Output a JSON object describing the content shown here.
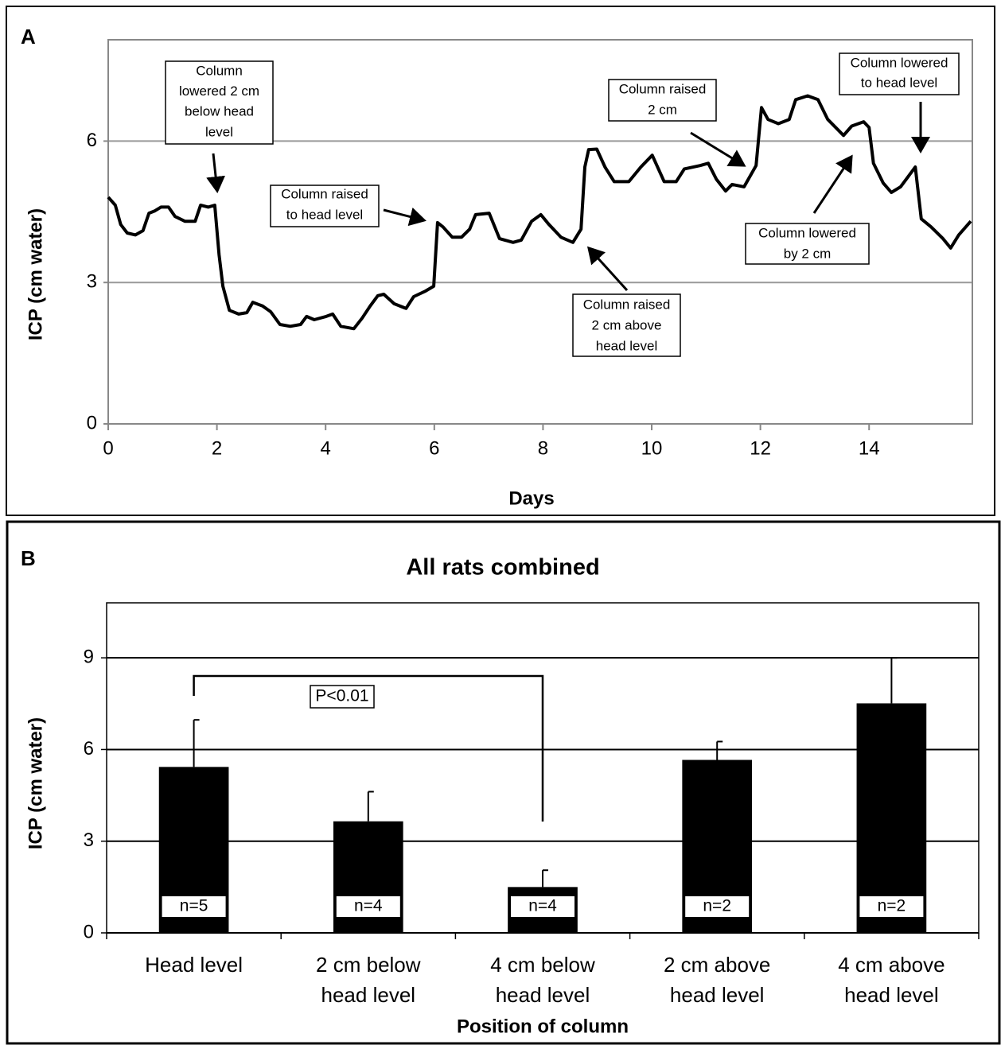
{
  "chart_data": [
    {
      "type": "line",
      "panel": "A",
      "ylabel": "ICP (cm water)",
      "xlabel": "Days",
      "color": "#000000",
      "xlim": [
        0,
        15.9
      ],
      "ylim": [
        0,
        8.15
      ],
      "xticks": [
        0,
        2,
        4,
        6,
        8,
        10,
        12,
        14
      ],
      "yticks": [
        0,
        3,
        6
      ],
      "grid": true,
      "x": [
        0,
        0.13,
        0.23,
        0.35,
        0.5,
        0.64,
        0.75,
        0.86,
        0.97,
        1.11,
        1.23,
        1.41,
        1.6,
        1.7,
        1.84,
        1.96,
        2.04,
        2.11,
        2.23,
        2.4,
        2.55,
        2.66,
        2.84,
        2.99,
        3.16,
        3.35,
        3.54,
        3.65,
        3.79,
        4.01,
        4.13,
        4.28,
        4.52,
        4.67,
        4.82,
        4.96,
        5.07,
        5.26,
        5.48,
        5.62,
        5.84,
        5.99,
        6.06,
        6.16,
        6.33,
        6.5,
        6.65,
        6.76,
        7.01,
        7.2,
        7.45,
        7.6,
        7.79,
        7.96,
        8.11,
        8.33,
        8.55,
        8.7,
        8.77,
        8.84,
        8.99,
        9.14,
        9.31,
        9.58,
        9.8,
        10.01,
        10.23,
        10.45,
        10.6,
        10.89,
        11.04,
        11.19,
        11.36,
        11.48,
        11.7,
        11.92,
        12.02,
        12.14,
        12.33,
        12.53,
        12.65,
        12.87,
        13.06,
        13.24,
        13.53,
        13.68,
        13.9,
        14.0,
        14.08,
        14.26,
        14.41,
        14.58,
        14.85,
        14.96,
        15.14,
        15.36,
        15.5,
        15.65,
        15.87
      ],
      "values": [
        4.81,
        4.64,
        4.23,
        4.05,
        4.01,
        4.1,
        4.47,
        4.52,
        4.6,
        4.6,
        4.4,
        4.3,
        4.3,
        4.64,
        4.6,
        4.64,
        3.59,
        2.92,
        2.41,
        2.33,
        2.36,
        2.58,
        2.5,
        2.38,
        2.11,
        2.07,
        2.11,
        2.28,
        2.21,
        2.28,
        2.33,
        2.07,
        2.02,
        2.24,
        2.5,
        2.72,
        2.75,
        2.55,
        2.45,
        2.7,
        2.82,
        2.92,
        4.27,
        4.18,
        3.96,
        3.96,
        4.13,
        4.44,
        4.47,
        3.93,
        3.85,
        3.9,
        4.3,
        4.44,
        4.23,
        3.96,
        3.85,
        4.13,
        5.45,
        5.82,
        5.83,
        5.45,
        5.14,
        5.14,
        5.45,
        5.7,
        5.14,
        5.14,
        5.41,
        5.48,
        5.53,
        5.19,
        4.94,
        5.08,
        5.03,
        5.48,
        6.71,
        6.46,
        6.37,
        6.46,
        6.88,
        6.96,
        6.88,
        6.46,
        6.12,
        6.32,
        6.41,
        6.29,
        5.53,
        5.11,
        4.91,
        5.03,
        5.45,
        4.35,
        4.18,
        3.93,
        3.73,
        4.01,
        4.3
      ],
      "annotations": [
        [
          "Column",
          "lowered 2 cm",
          "below head",
          "level"
        ],
        [
          "Column raised",
          "to head level"
        ],
        [
          "Column raised",
          "2 cm above",
          "head level"
        ],
        [
          "Column raised",
          "2 cm"
        ],
        [
          "Column lowered",
          "to head level"
        ],
        [
          "Column lowered",
          "by 2 cm"
        ]
      ]
    },
    {
      "type": "bar",
      "panel": "B",
      "title": "All rats combined",
      "ylabel": "ICP (cm water)",
      "xlabel": "Position of column",
      "color": "#000000",
      "categories": [
        [
          "Head level"
        ],
        [
          "2 cm below",
          "head level"
        ],
        [
          "4 cm below",
          "head level"
        ],
        [
          "2 cm above",
          "head level"
        ],
        [
          "4 cm above",
          "head level"
        ]
      ],
      "values": [
        5.43,
        3.65,
        1.5,
        5.66,
        7.51
      ],
      "errors": [
        1.54,
        0.97,
        0.55,
        0.6,
        1.49
      ],
      "sample_sizes": [
        "n=5",
        "n=4",
        "n=4",
        "n=2",
        "n=2"
      ],
      "significance": "P<0.01",
      "ylim": [
        0,
        10.8
      ],
      "yticks": [
        0,
        3,
        6,
        9
      ],
      "grid": true
    }
  ]
}
